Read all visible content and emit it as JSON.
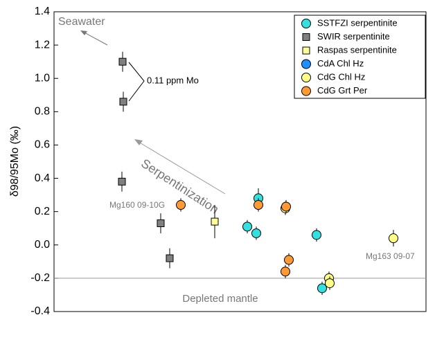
{
  "chart_data": {
    "type": "scatter",
    "ylabel": "δ98/95Mo (‰)",
    "xlim": [
      0,
      10.74
    ],
    "ylim": [
      -0.4,
      1.4
    ],
    "yticks": [
      -0.4,
      -0.2,
      {
        "value": 0,
        "label": "0.0"
      },
      0.2,
      0.4,
      0.6,
      0.8,
      {
        "value": 1,
        "label": "1.0"
      },
      1.2,
      1.4
    ],
    "reference_line": {
      "value": -0.2,
      "label": "Depleted mantle"
    },
    "annotations": [
      "Seawater",
      "0.11 ppm Mo",
      "Serpentinization",
      "Mg160 09-10G",
      "Mg163 09-07"
    ],
    "legend_position": "upper right",
    "series": [
      {
        "name": "SSTFZI serpentinite",
        "color": "#33e0e0",
        "marker": "circle",
        "x": [
          5.9,
          5.58,
          5.84,
          7.58,
          7.74
        ],
        "values": [
          0.28,
          0.11,
          0.07,
          0.06,
          -0.26
        ],
        "errors": [
          0.06,
          0.04,
          0.04,
          0.04,
          0.04
        ]
      },
      {
        "name": "SWIR serpentinite",
        "color": "#808080",
        "marker": "square",
        "x": [
          1.98,
          2.0,
          1.96,
          3.08,
          3.34
        ],
        "values": [
          1.1,
          0.86,
          0.38,
          0.13,
          -0.08
        ],
        "errors": [
          0.06,
          0.06,
          0.06,
          0.06,
          0.06
        ]
      },
      {
        "name": "Raspas serpentinite",
        "color": "#ffff99",
        "marker": "square",
        "x": [
          4.64
        ],
        "values": [
          0.14
        ],
        "errors": [
          0.1
        ]
      },
      {
        "name": "CdA Chl Hz",
        "color": "#1e90ff",
        "marker": "circle",
        "x": [],
        "values": [],
        "errors": []
      },
      {
        "name": "CdG Chl Hz",
        "color": "#ffff88",
        "marker": "circle",
        "x": [
          6.68,
          7.94,
          7.96,
          9.8
        ],
        "values": [
          0.22,
          -0.2,
          -0.23,
          0.04
        ],
        "errors": [
          0.04,
          0.04,
          0.04,
          0.05
        ]
      },
      {
        "name": "CdG Grt Per",
        "color": "#ff9933",
        "marker": "circle",
        "x": [
          3.66,
          5.9,
          6.7,
          6.78,
          6.68
        ],
        "values": [
          0.24,
          0.24,
          0.23,
          -0.09,
          -0.16
        ],
        "errors": [
          0.04,
          0.04,
          0.04,
          0.04,
          0.04
        ]
      }
    ]
  }
}
